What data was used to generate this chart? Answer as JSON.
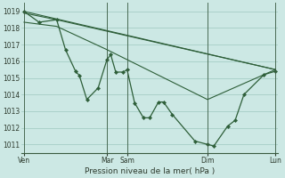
{
  "background_color": "#cce8e4",
  "grid_color": "#9ec8c0",
  "line_color": "#2d5e38",
  "marker_color": "#2d5e38",
  "xlabel": "Pression niveau de la mer( hPa )",
  "ylim": [
    1010.5,
    1019.5
  ],
  "yticks": [
    1011,
    1012,
    1013,
    1014,
    1015,
    1016,
    1017,
    1018,
    1019
  ],
  "x_tick_labels": [
    "Ven",
    "Mar",
    "Sam",
    "Dim",
    "Lun"
  ],
  "x_tick_positions": [
    0.0,
    0.33,
    0.41,
    0.73,
    1.0
  ],
  "vline_positions": [
    0.0,
    0.33,
    0.41,
    0.73,
    1.0
  ],
  "series_main": [
    [
      0.0,
      1019.0
    ],
    [
      0.06,
      1018.35
    ],
    [
      0.13,
      1018.5
    ],
    [
      0.165,
      1016.7
    ],
    [
      0.205,
      1015.4
    ],
    [
      0.22,
      1015.15
    ],
    [
      0.25,
      1013.7
    ],
    [
      0.295,
      1014.4
    ],
    [
      0.33,
      1016.1
    ],
    [
      0.345,
      1016.4
    ],
    [
      0.365,
      1015.35
    ],
    [
      0.395,
      1015.35
    ],
    [
      0.41,
      1015.5
    ],
    [
      0.44,
      1013.5
    ],
    [
      0.475,
      1012.6
    ],
    [
      0.5,
      1012.6
    ],
    [
      0.535,
      1013.55
    ],
    [
      0.555,
      1013.55
    ],
    [
      0.59,
      1012.8
    ],
    [
      0.68,
      1011.2
    ],
    [
      0.73,
      1011.0
    ],
    [
      0.755,
      1010.9
    ],
    [
      0.81,
      1012.1
    ],
    [
      0.84,
      1012.45
    ],
    [
      0.875,
      1014.0
    ],
    [
      0.955,
      1015.2
    ],
    [
      1.0,
      1015.4
    ]
  ],
  "series_line1": [
    [
      0.0,
      1019.0
    ],
    [
      1.0,
      1015.5
    ]
  ],
  "series_line2": [
    [
      0.0,
      1018.9
    ],
    [
      0.13,
      1018.5
    ],
    [
      1.0,
      1015.5
    ]
  ],
  "series_line3": [
    [
      0.0,
      1018.35
    ],
    [
      0.13,
      1018.1
    ],
    [
      0.33,
      1016.7
    ],
    [
      0.73,
      1013.7
    ],
    [
      1.0,
      1015.5
    ]
  ]
}
